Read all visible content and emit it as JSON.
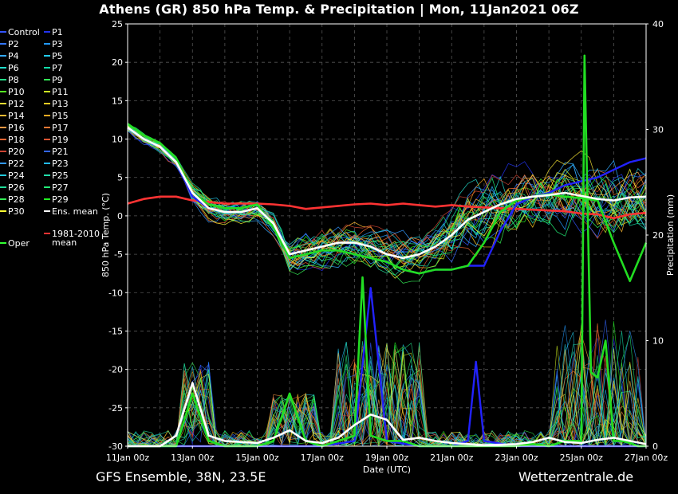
{
  "title": "Athens  (GR)  850 hPa Temp. & Precipitation | Mon, 11Jan2021 06Z",
  "footer_left": "GFS Ensemble, 38N, 23.5E",
  "footer_right": "Wetterzentrale.de",
  "chart_data": {
    "type": "line",
    "title": "Athens  (GR)  850 hPa Temp. & Precipitation | Mon, 11Jan2021 06Z",
    "xlabel": "Date (UTC)",
    "ylabel": "850 hPa Temp. (°C)",
    "y2label": "Precipitation (mm)",
    "ylim": [
      -30,
      25
    ],
    "y2lim": [
      0,
      40
    ],
    "xlim": [
      "11Jan 00z",
      "27Jan 00z"
    ],
    "grid": true,
    "legend_position": "left, outside",
    "x_ticks": [
      "11Jan 00z",
      "13Jan 00z",
      "15Jan 00z",
      "17Jan 00z",
      "19Jan 00z",
      "21Jan 00z",
      "23Jan 00z",
      "25Jan 00z",
      "27Jan 00z"
    ],
    "y_ticks": [
      25,
      20,
      15,
      10,
      5,
      0,
      -5,
      -10,
      -15,
      -20,
      -25,
      -30
    ],
    "y2_ticks": [
      40,
      30,
      20,
      10,
      0
    ],
    "legend": [
      {
        "name": "Control",
        "color": "#3355ff"
      },
      {
        "name": "P1",
        "color": "#2233ee"
      },
      {
        "name": "P2",
        "color": "#3377ff"
      },
      {
        "name": "P3",
        "color": "#2299ff"
      },
      {
        "name": "P4",
        "color": "#33aaff"
      },
      {
        "name": "P5",
        "color": "#22ccee"
      },
      {
        "name": "P6",
        "color": "#22ddcc"
      },
      {
        "name": "P7",
        "color": "#11ddaa"
      },
      {
        "name": "P8",
        "color": "#22dd88"
      },
      {
        "name": "P9",
        "color": "#33ee55"
      },
      {
        "name": "P10",
        "color": "#55ee22"
      },
      {
        "name": "P11",
        "color": "#ccee22"
      },
      {
        "name": "P12",
        "color": "#eedd33"
      },
      {
        "name": "P13",
        "color": "#ffcc22"
      },
      {
        "name": "P14",
        "color": "#ffbb33"
      },
      {
        "name": "P15",
        "color": "#ffaa22"
      },
      {
        "name": "P16",
        "color": "#ff9944"
      },
      {
        "name": "P17",
        "color": "#ff7733"
      },
      {
        "name": "P18",
        "color": "#ee6633"
      },
      {
        "name": "P19",
        "color": "#dd5533"
      },
      {
        "name": "P20",
        "color": "#cc4433"
      },
      {
        "name": "P21",
        "color": "#3366ff"
      },
      {
        "name": "P22",
        "color": "#3399ff"
      },
      {
        "name": "P23",
        "color": "#22bbff"
      },
      {
        "name": "P24",
        "color": "#22ccdd"
      },
      {
        "name": "P25",
        "color": "#22ddaa"
      },
      {
        "name": "P26",
        "color": "#22dd99"
      },
      {
        "name": "P27",
        "color": "#22ee77"
      },
      {
        "name": "P28",
        "color": "#33ee55"
      },
      {
        "name": "P29",
        "color": "#22ee22"
      },
      {
        "name": "P30",
        "color": "#ffff33"
      },
      {
        "name": "Ens. mean",
        "color": "#ffffff"
      },
      {
        "name": "1981-2010 mean",
        "color": "#ff3333"
      },
      {
        "name": "Oper",
        "color": "#33ff33"
      }
    ],
    "series": [
      {
        "name": "Ens. mean",
        "axis": "temp",
        "color": "#ffffff",
        "x": [
          0,
          0.5,
          1,
          1.5,
          2,
          2.5,
          3,
          3.5,
          4,
          4.5,
          5,
          5.5,
          6,
          6.5,
          7,
          7.5,
          8,
          8.5,
          9,
          9.5,
          10,
          10.5,
          11,
          11.5,
          12,
          12.5,
          13,
          13.5,
          14,
          14.5,
          15,
          15.5,
          16
        ],
        "values": [
          11.5,
          10,
          9,
          7,
          3,
          1,
          0.5,
          0.5,
          1,
          -1,
          -5,
          -4.5,
          -4,
          -3.5,
          -3.5,
          -4,
          -5,
          -5.5,
          -5,
          -4,
          -2.5,
          -0.5,
          0.5,
          1.5,
          2.2,
          2.5,
          2.7,
          3,
          2.6,
          2.2,
          2,
          2.4,
          2.5
        ]
      },
      {
        "name": "1981-2010 mean",
        "axis": "temp",
        "color": "#ff3333",
        "x": [
          0,
          0.5,
          1,
          1.5,
          2,
          2.5,
          3,
          3.5,
          4,
          4.5,
          5,
          5.5,
          6,
          6.5,
          7,
          7.5,
          8,
          8.5,
          9,
          9.5,
          10,
          10.5,
          11,
          11.5,
          12,
          12.5,
          13,
          13.5,
          14,
          14.5,
          15,
          15.5,
          16
        ],
        "values": [
          1.6,
          2.2,
          2.5,
          2.5,
          2,
          1.8,
          1.6,
          1.6,
          1.6,
          1.5,
          1.3,
          0.9,
          1.1,
          1.3,
          1.5,
          1.6,
          1.4,
          1.6,
          1.4,
          1.2,
          1.4,
          1.2,
          1.1,
          1,
          0.9,
          0.8,
          0.7,
          0.6,
          0.3,
          0.2,
          -0.3,
          0.2,
          0.4
        ]
      },
      {
        "name": "Oper",
        "axis": "temp",
        "color": "#22dd22",
        "x": [
          0,
          0.5,
          1,
          1.5,
          2,
          2.5,
          3,
          3.5,
          4,
          4.5,
          5,
          5.5,
          6,
          6.5,
          7,
          7.5,
          8,
          8.5,
          9,
          9.5,
          10,
          10.5,
          11,
          11.5,
          12,
          12.5,
          13,
          13.5,
          14,
          14.5,
          15,
          15.5,
          16
        ],
        "values": [
          12,
          10.5,
          9.5,
          7.5,
          3,
          1.5,
          1,
          1,
          1.5,
          -1.5,
          -5.5,
          -5,
          -4.5,
          -4.5,
          -5,
          -5.5,
          -6,
          -7,
          -7.5,
          -7,
          -7,
          -6.5,
          -3.5,
          0.5,
          2,
          2.5,
          2.8,
          2.5,
          2.3,
          2,
          -3.5,
          -8.5,
          -3.5
        ]
      },
      {
        "name": "Control",
        "axis": "temp",
        "color": "#2222ff",
        "x": [
          0,
          0.5,
          1,
          1.5,
          2,
          2.5,
          3,
          3.5,
          4,
          4.5,
          5,
          5.5,
          6,
          6.5,
          7,
          7.5,
          8,
          8.5,
          9,
          9.5,
          10,
          10.5,
          11,
          11.5,
          12,
          12.5,
          13,
          13.5,
          14,
          14.5,
          15,
          15.5,
          16
        ],
        "values": [
          11.5,
          10,
          9,
          7,
          2.5,
          1,
          0.5,
          0.5,
          1,
          -1,
          -5.5,
          -5,
          -4.5,
          -4.5,
          -5,
          -5.5,
          -6,
          -7,
          -7.5,
          -7,
          -7,
          -6.5,
          -6.5,
          -2,
          1.5,
          2.5,
          3,
          4,
          4.5,
          5,
          6,
          7,
          7.5
        ]
      },
      {
        "name": "Oper",
        "axis": "precip",
        "color": "#22dd22",
        "x": [
          0,
          1,
          1.5,
          2,
          2.5,
          3,
          4,
          4.5,
          5,
          5.5,
          6,
          6.5,
          7,
          7.25,
          7.5,
          8,
          8.5,
          9,
          9.5,
          10,
          11,
          12,
          12.5,
          13,
          13.5,
          14,
          14.1,
          14.3,
          14.5,
          14.75,
          15,
          15.25,
          15.5,
          15.75,
          16
        ],
        "values": [
          0,
          0,
          0,
          5,
          0.5,
          0,
          0,
          0.5,
          5,
          0.5,
          0,
          0.5,
          1,
          16,
          1,
          0.5,
          0.5,
          0,
          0,
          0,
          0,
          0,
          0.2,
          0,
          0.5,
          0.5,
          37,
          7,
          6.5,
          10,
          0.5,
          0.5,
          0.3,
          0,
          0
        ]
      },
      {
        "name": "Control",
        "axis": "precip",
        "color": "#2222ff",
        "x": [
          0,
          2,
          4,
          6,
          7,
          7.5,
          8,
          9,
          10,
          10.5,
          10.75,
          11,
          12,
          13,
          14,
          15,
          16
        ],
        "values": [
          0,
          0,
          0,
          0,
          0.5,
          15,
          0.5,
          0,
          0,
          0.5,
          8,
          0.5,
          0,
          0,
          0,
          0,
          0
        ]
      },
      {
        "name": "Ens. mean",
        "axis": "precip",
        "color": "#ffffff",
        "x": [
          0,
          1,
          1.5,
          2,
          2.5,
          3,
          4,
          4.5,
          5,
          5.5,
          6,
          6.5,
          7,
          7.5,
          8,
          8.5,
          9,
          9.5,
          10,
          11,
          12,
          12.5,
          13,
          13.5,
          14,
          14.5,
          15,
          15.5,
          16
        ],
        "values": [
          0,
          0,
          1,
          6,
          1,
          0.5,
          0.3,
          0.8,
          1.5,
          0.5,
          0.3,
          0.8,
          2,
          3,
          2.5,
          0.6,
          0.8,
          0.5,
          0.3,
          0.1,
          0.2,
          0.4,
          0.8,
          0.4,
          0.3,
          0.6,
          0.8,
          0.5,
          0.2
        ]
      }
    ]
  }
}
